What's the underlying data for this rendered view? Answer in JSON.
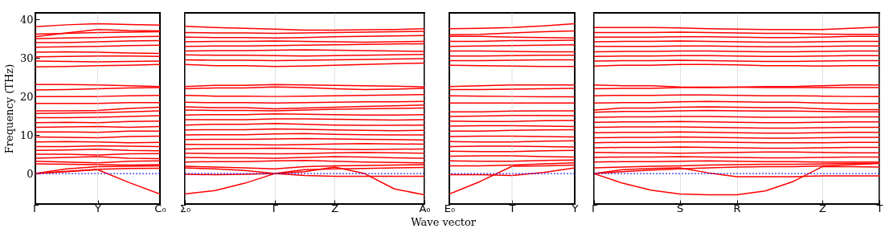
{
  "chart_data": [
    {
      "type": "line",
      "ylabel": "Frequency (THz)",
      "categories": [
        "Γ",
        null,
        "Y",
        null,
        "C₀"
      ],
      "ylim": [
        -7.9,
        41.7
      ],
      "yticks": [
        0,
        10,
        20,
        30,
        40
      ],
      "ref_lines": [
        {
          "axis": "y",
          "value": 0,
          "color": "#0000ff",
          "line_style": "dotted"
        },
        {
          "axis": "x",
          "value": "Y",
          "color": "#cccccc",
          "line_style": "solid"
        }
      ],
      "series": [
        {
          "color": "#ff0000",
          "values": [
            0,
            0.5,
            1,
            -2.3,
            -5.3
          ]
        },
        {
          "color": "#ff0000",
          "values": [
            0,
            0.6,
            1.1,
            1.3,
            1.4
          ]
        },
        {
          "color": "#ff0000",
          "values": [
            0,
            1.2,
            1.8,
            1.9,
            2
          ]
        },
        {
          "color": "#ff0000",
          "values": [
            2.5,
            2.4,
            2.3,
            2.2,
            2.3
          ]
        },
        {
          "color": "#ff0000",
          "values": [
            3.2,
            3,
            2.8,
            3.2,
            3.3
          ]
        },
        {
          "color": "#ff0000",
          "values": [
            4,
            4.2,
            4.4,
            4,
            3.9
          ]
        },
        {
          "color": "#ff0000",
          "values": [
            5,
            5,
            4.8,
            5.1,
            5.2
          ]
        },
        {
          "color": "#ff0000",
          "values": [
            6,
            6.1,
            6.3,
            6,
            5.9
          ]
        },
        {
          "color": "#ff0000",
          "values": [
            7,
            7,
            7.2,
            7.1,
            7
          ]
        },
        {
          "color": "#ff0000",
          "values": [
            8.2,
            8.3,
            8.2,
            8,
            8.1
          ]
        },
        {
          "color": "#ff0000",
          "values": [
            9.5,
            9.4,
            9.3,
            9.6,
            9.7
          ]
        },
        {
          "color": "#ff0000",
          "values": [
            10.8,
            10.8,
            10.7,
            11,
            11
          ]
        },
        {
          "color": "#ff0000",
          "values": [
            12,
            12.1,
            12.2,
            12,
            12.2
          ]
        },
        {
          "color": "#ff0000",
          "values": [
            13.2,
            13.3,
            13.2,
            13.5,
            13.6
          ]
        },
        {
          "color": "#ff0000",
          "values": [
            14.5,
            14.5,
            14.6,
            14.8,
            15
          ]
        },
        {
          "color": "#ff0000",
          "values": [
            15.6,
            15.7,
            15.8,
            16,
            16.3
          ]
        },
        {
          "color": "#ff0000",
          "values": [
            16.3,
            16.3,
            16.4,
            16.9,
            17.2
          ]
        },
        {
          "color": "#ff0000",
          "values": [
            18.2,
            18.2,
            18.2,
            18.4,
            18.4
          ]
        },
        {
          "color": "#ff0000",
          "values": [
            20,
            20,
            20,
            20.2,
            20.3
          ]
        },
        {
          "color": "#ff0000",
          "values": [
            21.7,
            21.8,
            22,
            22.2,
            22.3
          ]
        },
        {
          "color": "#ff0000",
          "values": [
            23.1,
            23.1,
            23,
            22.8,
            22.6
          ]
        },
        {
          "color": "#ff0000",
          "values": [
            27.7,
            27.8,
            28,
            28.1,
            28.3
          ]
        },
        {
          "color": "#ff0000",
          "values": [
            29.2,
            29.1,
            29,
            29.1,
            29.2
          ]
        },
        {
          "color": "#ff0000",
          "values": [
            30.3,
            30.4,
            30.5,
            30.5,
            30.4
          ]
        },
        {
          "color": "#ff0000",
          "values": [
            31.5,
            31.6,
            31.5,
            31.3,
            31.2
          ]
        },
        {
          "color": "#ff0000",
          "values": [
            32.8,
            32.9,
            33,
            33.2,
            33.3
          ]
        },
        {
          "color": "#ff0000",
          "values": [
            34,
            34,
            34.2,
            34.4,
            34.5
          ]
        },
        {
          "color": "#ff0000",
          "values": [
            35,
            35.2,
            35.3,
            35.5,
            35.6
          ]
        },
        {
          "color": "#ff0000",
          "values": [
            36.2,
            36.4,
            36.6,
            36.7,
            36.8
          ]
        },
        {
          "color": "#ff0000",
          "values": [
            35.5,
            36.5,
            37.4,
            37.1,
            37
          ]
        },
        {
          "color": "#ff0000",
          "values": [
            38.1,
            38.6,
            38.9,
            38.7,
            38.5
          ]
        }
      ]
    },
    {
      "type": "line",
      "categories": [
        "Σ₀",
        null,
        null,
        "Γ",
        null,
        "Z",
        null,
        null,
        "A₀"
      ],
      "ylim": [
        -7.9,
        41.7
      ],
      "tick_labels": "x",
      "grid": "x",
      "ref_lines": [
        {
          "axis": "y",
          "value": 0,
          "color": "#0000ff",
          "line_style": "dotted"
        }
      ],
      "series": [
        {
          "color": "#ff0000",
          "values": [
            -5.3,
            -4.4,
            -2.5,
            0,
            0.5,
            1.7,
            0,
            -4,
            -5.5
          ]
        },
        {
          "color": "#ff0000",
          "values": [
            -0.2,
            -0.3,
            -0.2,
            0,
            -0.5,
            -0.7,
            -0.7,
            -0.7,
            -0.7
          ]
        },
        {
          "color": "#ff0000",
          "values": [
            1.5,
            1.2,
            0.8,
            0,
            1,
            1.2,
            1.3,
            1.5,
            1.6
          ]
        },
        {
          "color": "#ff0000",
          "values": [
            1.9,
            1.7,
            1.5,
            1.2,
            1.8,
            2,
            2.1,
            2.2,
            2.3
          ]
        },
        {
          "color": "#ff0000",
          "values": [
            3,
            3.1,
            3.1,
            3.3,
            3.4,
            3.2,
            3,
            2.9,
            2.8
          ]
        },
        {
          "color": "#ff0000",
          "values": [
            4.2,
            4.1,
            4.1,
            4,
            4.2,
            4.4,
            4.3,
            4.1,
            4
          ]
        },
        {
          "color": "#ff0000",
          "values": [
            5.3,
            5.2,
            5.2,
            5.1,
            5.2,
            5.4,
            5.5,
            5.4,
            5.3
          ]
        },
        {
          "color": "#ff0000",
          "values": [
            6.4,
            6.5,
            6.5,
            6.6,
            6.5,
            6.3,
            6.2,
            6.3,
            6.4
          ]
        },
        {
          "color": "#ff0000",
          "values": [
            7.6,
            7.5,
            7.5,
            7.4,
            7.5,
            7.7,
            7.8,
            7.7,
            7.6
          ]
        },
        {
          "color": "#ff0000",
          "values": [
            8.8,
            8.9,
            8.9,
            9,
            9.1,
            9,
            8.9,
            8.8,
            8.7
          ]
        },
        {
          "color": "#ff0000",
          "values": [
            10,
            10.1,
            10.1,
            10.3,
            10.4,
            10.2,
            10.1,
            10,
            10
          ]
        },
        {
          "color": "#ff0000",
          "values": [
            11.3,
            11.4,
            11.4,
            11.6,
            11.5,
            11.3,
            11.2,
            11.1,
            11.2
          ]
        },
        {
          "color": "#ff0000",
          "values": [
            12.6,
            12.8,
            12.8,
            13,
            12.8,
            12.6,
            12.5,
            12.5,
            12.6
          ]
        },
        {
          "color": "#ff0000",
          "values": [
            14,
            14,
            14,
            14.2,
            14.2,
            14.1,
            14,
            13.9,
            14
          ]
        },
        {
          "color": "#ff0000",
          "values": [
            15.2,
            15.3,
            15.3,
            15.5,
            15.4,
            15.3,
            15.2,
            15.2,
            15.3
          ]
        },
        {
          "color": "#ff0000",
          "values": [
            16.5,
            16.4,
            16.4,
            16.3,
            16.5,
            16.7,
            16.8,
            16.9,
            17
          ]
        },
        {
          "color": "#ff0000",
          "values": [
            17.3,
            17.1,
            17.1,
            16.8,
            17,
            17.2,
            17.4,
            17.6,
            17.8
          ]
        },
        {
          "color": "#ff0000",
          "values": [
            18.5,
            18.4,
            18.4,
            18.3,
            18.4,
            18.5,
            18.6,
            18.6,
            18.7
          ]
        },
        {
          "color": "#ff0000",
          "values": [
            20.3,
            20.1,
            20.1,
            20,
            20.1,
            20.2,
            20.3,
            20.4,
            20.5
          ]
        },
        {
          "color": "#ff0000",
          "values": [
            22,
            22.2,
            22.2,
            22.5,
            22.3,
            22,
            21.8,
            21.9,
            22.1
          ]
        },
        {
          "color": "#ff0000",
          "values": [
            22.6,
            22.9,
            22.9,
            23.1,
            23,
            22.9,
            22.8,
            22.7,
            22.5
          ]
        },
        {
          "color": "#ff0000",
          "values": [
            28.3,
            28,
            28,
            27.8,
            27.9,
            28.1,
            28.3,
            28.5,
            28.7
          ]
        },
        {
          "color": "#ff0000",
          "values": [
            29.5,
            29.4,
            29.4,
            29.3,
            29.4,
            29.5,
            29.6,
            29.7,
            29.8
          ]
        },
        {
          "color": "#ff0000",
          "values": [
            30.8,
            30.7,
            30.7,
            30.6,
            30.5,
            30.6,
            30.7,
            30.8,
            30.9
          ]
        },
        {
          "color": "#ff0000",
          "values": [
            31.8,
            31.9,
            31.9,
            32,
            32.1,
            32,
            31.9,
            31.8,
            31.7
          ]
        },
        {
          "color": "#ff0000",
          "values": [
            33,
            33.1,
            33.1,
            33.2,
            33.3,
            33.4,
            33.5,
            33.6,
            33.7
          ]
        },
        {
          "color": "#ff0000",
          "values": [
            34.2,
            34.3,
            34.3,
            34.4,
            34.3,
            34.2,
            34.1,
            34.2,
            34.3
          ]
        },
        {
          "color": "#ff0000",
          "values": [
            35.4,
            35.3,
            35.3,
            35.2,
            35.3,
            35.5,
            35.6,
            35.7,
            35.8
          ]
        },
        {
          "color": "#ff0000",
          "values": [
            36.6,
            36.5,
            36.5,
            36.4,
            36.5,
            36.6,
            36.7,
            36.8,
            36.9
          ]
        },
        {
          "color": "#ff0000",
          "values": [
            38.2,
            37.9,
            37.7,
            37.5,
            37.2,
            37.2,
            37.3,
            37.4,
            37.6
          ]
        }
      ]
    },
    {
      "type": "line",
      "xlabel": "Wave vector",
      "categories": [
        "E₀",
        null,
        "T",
        null,
        "Y"
      ],
      "ylim": [
        -7.9,
        41.7
      ],
      "tick_labels": "x",
      "ref_lines": [
        {
          "axis": "y",
          "value": 0,
          "color": "#0000ff",
          "line_style": "dotted"
        },
        {
          "axis": "x",
          "value": "T",
          "color": "#cccccc",
          "line_style": "solid"
        }
      ],
      "series": [
        {
          "color": "#ff0000",
          "values": [
            -5.3,
            -2,
            1.9,
            2,
            2.2
          ]
        },
        {
          "color": "#ff0000",
          "values": [
            -0.3,
            -0.3,
            -0.5,
            0.3,
            1.5
          ]
        },
        {
          "color": "#ff0000",
          "values": [
            2,
            2,
            2.2,
            2.5,
            2.8
          ]
        },
        {
          "color": "#ff0000",
          "values": [
            3.3,
            3.2,
            3.2,
            3.4,
            3.5
          ]
        },
        {
          "color": "#ff0000",
          "values": [
            4.5,
            4.6,
            4.6,
            4.4,
            4.3
          ]
        },
        {
          "color": "#ff0000",
          "values": [
            5.8,
            5.7,
            5.7,
            5.9,
            6
          ]
        },
        {
          "color": "#ff0000",
          "values": [
            7,
            7.1,
            7.1,
            7,
            6.9
          ]
        },
        {
          "color": "#ff0000",
          "values": [
            8.3,
            8.2,
            8.2,
            8.4,
            8.5
          ]
        },
        {
          "color": "#ff0000",
          "values": [
            9.6,
            9.7,
            9.7,
            9.6,
            9.5
          ]
        },
        {
          "color": "#ff0000",
          "values": [
            11,
            11,
            11.2,
            11.3,
            11.4
          ]
        },
        {
          "color": "#ff0000",
          "values": [
            12.3,
            12.4,
            12.4,
            12.3,
            12.2
          ]
        },
        {
          "color": "#ff0000",
          "values": [
            13.6,
            13.5,
            13.5,
            13.7,
            13.8
          ]
        },
        {
          "color": "#ff0000",
          "values": [
            14.8,
            14.9,
            15.1,
            15.1,
            15
          ]
        },
        {
          "color": "#ff0000",
          "values": [
            16,
            16,
            16.2,
            16.3,
            16.3
          ]
        },
        {
          "color": "#ff0000",
          "values": [
            18.3,
            18.3,
            18.3,
            18.3,
            18.3
          ]
        },
        {
          "color": "#ff0000",
          "values": [
            20.2,
            20.1,
            20,
            19.9,
            19.9
          ]
        },
        {
          "color": "#ff0000",
          "values": [
            21.8,
            21.8,
            21.9,
            22,
            22.1
          ]
        },
        {
          "color": "#ff0000",
          "values": [
            22.6,
            22.8,
            23,
            23,
            23
          ]
        },
        {
          "color": "#ff0000",
          "values": [
            28.1,
            28,
            27.9,
            27.8,
            27.8
          ]
        },
        {
          "color": "#ff0000",
          "values": [
            29.3,
            29.3,
            29.4,
            29.5,
            29.5
          ]
        },
        {
          "color": "#ff0000",
          "values": [
            30.5,
            30.5,
            30.6,
            30.7,
            30.7
          ]
        },
        {
          "color": "#ff0000",
          "values": [
            31.8,
            31.8,
            31.7,
            31.6,
            31.6
          ]
        },
        {
          "color": "#ff0000",
          "values": [
            33,
            33.1,
            33.2,
            33.3,
            33.4
          ]
        },
        {
          "color": "#ff0000",
          "values": [
            34.3,
            34.3,
            34.5,
            34.5,
            34.6
          ]
        },
        {
          "color": "#ff0000",
          "values": [
            35.6,
            35.6,
            35.4,
            35.3,
            35.2
          ]
        },
        {
          "color": "#ff0000",
          "values": [
            36,
            36.1,
            36.5,
            36.8,
            37
          ]
        },
        {
          "color": "#ff0000",
          "values": [
            37.6,
            37.7,
            37.9,
            38.3,
            38.9
          ]
        }
      ]
    },
    {
      "type": "line",
      "categories": [
        "Γ",
        null,
        null,
        "S",
        null,
        "R",
        null,
        null,
        "Z",
        null,
        "T"
      ],
      "ylim": [
        -7.9,
        41.7
      ],
      "tick_labels": "x",
      "grid": "x",
      "ref_lines": [
        {
          "axis": "y",
          "value": 0,
          "color": "#0000ff",
          "line_style": "dotted"
        }
      ],
      "series": [
        {
          "color": "#ff0000",
          "values": [
            0,
            -2.5,
            -4.3,
            -5.3,
            -5.5,
            -5.5,
            -4.5,
            -2,
            1.8,
            1.8,
            1.7
          ]
        },
        {
          "color": "#ff0000",
          "values": [
            0,
            1,
            1.3,
            1.5,
            0.2,
            -0.8,
            -0.8,
            -0.8,
            -0.6,
            -0.6,
            -0.6
          ]
        },
        {
          "color": "#ff0000",
          "values": [
            0,
            0.5,
            0.9,
            1.2,
            1.5,
            1.7,
            1.8,
            1.8,
            2,
            2.3,
            2.6
          ]
        },
        {
          "color": "#ff0000",
          "values": [
            1.5,
            1.7,
            1.9,
            2,
            2.2,
            2.3,
            2.4,
            2.4,
            2.5,
            2.6,
            2.7
          ]
        },
        {
          "color": "#ff0000",
          "values": [
            3,
            3.1,
            3.1,
            3.2,
            3.3,
            3.2,
            3.1,
            3.1,
            3,
            3,
            3
          ]
        },
        {
          "color": "#ff0000",
          "values": [
            4.2,
            4.3,
            4.3,
            4.4,
            4.3,
            4.2,
            4.1,
            4.1,
            4.2,
            4.3,
            4.3
          ]
        },
        {
          "color": "#ff0000",
          "values": [
            5.5,
            5.4,
            5.4,
            5.3,
            5.4,
            5.5,
            5.6,
            5.6,
            5.5,
            5.4,
            5.4
          ]
        },
        {
          "color": "#ff0000",
          "values": [
            6.7,
            6.8,
            6.8,
            6.9,
            6.8,
            6.7,
            6.6,
            6.6,
            6.7,
            6.8,
            6.8
          ]
        },
        {
          "color": "#ff0000",
          "values": [
            8,
            8.1,
            8.1,
            8.2,
            8.2,
            8.1,
            8,
            8,
            8,
            8.1,
            8.1
          ]
        },
        {
          "color": "#ff0000",
          "values": [
            9.3,
            9.4,
            9.4,
            9.5,
            9.4,
            9.3,
            9.2,
            9.2,
            9.3,
            9.4,
            9.4
          ]
        },
        {
          "color": "#ff0000",
          "values": [
            10.6,
            10.7,
            10.7,
            10.8,
            10.7,
            10.6,
            10.5,
            10.5,
            10.6,
            10.7,
            10.7
          ]
        },
        {
          "color": "#ff0000",
          "values": [
            12,
            12.1,
            12.1,
            12.1,
            12,
            11.9,
            11.8,
            11.8,
            11.9,
            12,
            12
          ]
        },
        {
          "color": "#ff0000",
          "values": [
            13.3,
            13.4,
            13.4,
            13.5,
            13.4,
            13.3,
            13.2,
            13.2,
            13.3,
            13.4,
            13.4
          ]
        },
        {
          "color": "#ff0000",
          "values": [
            14.6,
            14.7,
            14.7,
            14.8,
            14.8,
            14.7,
            14.6,
            14.6,
            14.6,
            14.7,
            14.7
          ]
        },
        {
          "color": "#ff0000",
          "values": [
            15.9,
            16.1,
            16.1,
            16.3,
            16.4,
            16.3,
            16.2,
            16.2,
            16.1,
            16,
            16
          ]
        },
        {
          "color": "#ff0000",
          "values": [
            16.5,
            17,
            17,
            17.2,
            17.3,
            17.2,
            17.1,
            17.1,
            16.8,
            16.6,
            16.6
          ]
        },
        {
          "color": "#ff0000",
          "values": [
            18.3,
            18.4,
            18.4,
            18.6,
            18.7,
            18.6,
            18.5,
            18.5,
            18.3,
            18.2,
            18.2
          ]
        },
        {
          "color": "#ff0000",
          "values": [
            20.2,
            20.3,
            20.3,
            20.4,
            20.4,
            20.3,
            20.2,
            20.2,
            20.1,
            20,
            20
          ]
        },
        {
          "color": "#ff0000",
          "values": [
            22,
            22.1,
            22.1,
            22.3,
            22.3,
            22.4,
            22.6,
            22.6,
            22.8,
            23,
            23
          ]
        },
        {
          "color": "#ff0000",
          "values": [
            23,
            22.8,
            22.8,
            22.5,
            22.4,
            22.4,
            22.3,
            22.3,
            22.3,
            22.3,
            22.3
          ]
        },
        {
          "color": "#ff0000",
          "values": [
            27.9,
            28.1,
            28.1,
            28.3,
            28.3,
            28.2,
            28,
            28,
            27.9,
            28,
            28
          ]
        },
        {
          "color": "#ff0000",
          "values": [
            29.2,
            29.3,
            29.3,
            29.4,
            29.3,
            29.2,
            29.1,
            29.1,
            29.2,
            29.3,
            29.3
          ]
        },
        {
          "color": "#ff0000",
          "values": [
            30.4,
            30.5,
            30.5,
            30.6,
            30.6,
            30.5,
            30.4,
            30.4,
            30.5,
            30.6,
            30.6
          ]
        },
        {
          "color": "#ff0000",
          "values": [
            31.6,
            31.7,
            31.7,
            31.8,
            31.8,
            31.7,
            31.6,
            31.6,
            31.7,
            31.8,
            31.8
          ]
        },
        {
          "color": "#ff0000",
          "values": [
            33,
            33,
            33,
            33.1,
            33.1,
            33,
            32.9,
            32.9,
            33,
            33.1,
            33.1
          ]
        },
        {
          "color": "#ff0000",
          "values": [
            34.2,
            34.3,
            34.3,
            34.4,
            34.3,
            34.2,
            34.1,
            34.1,
            34.2,
            34.3,
            34.3
          ]
        },
        {
          "color": "#ff0000",
          "values": [
            35.4,
            35.4,
            35.4,
            35.5,
            35.5,
            35.4,
            35.3,
            35.3,
            35.4,
            35.6,
            35.6
          ]
        },
        {
          "color": "#ff0000",
          "values": [
            36.6,
            36.6,
            36.6,
            36.7,
            36.6,
            36.5,
            36.4,
            36.4,
            36.2,
            36.1,
            36.1
          ]
        },
        {
          "color": "#ff0000",
          "values": [
            37.9,
            37.9,
            37.9,
            37.8,
            37.6,
            37.5,
            37.4,
            37.4,
            37.4,
            37.7,
            38
          ]
        }
      ]
    }
  ]
}
